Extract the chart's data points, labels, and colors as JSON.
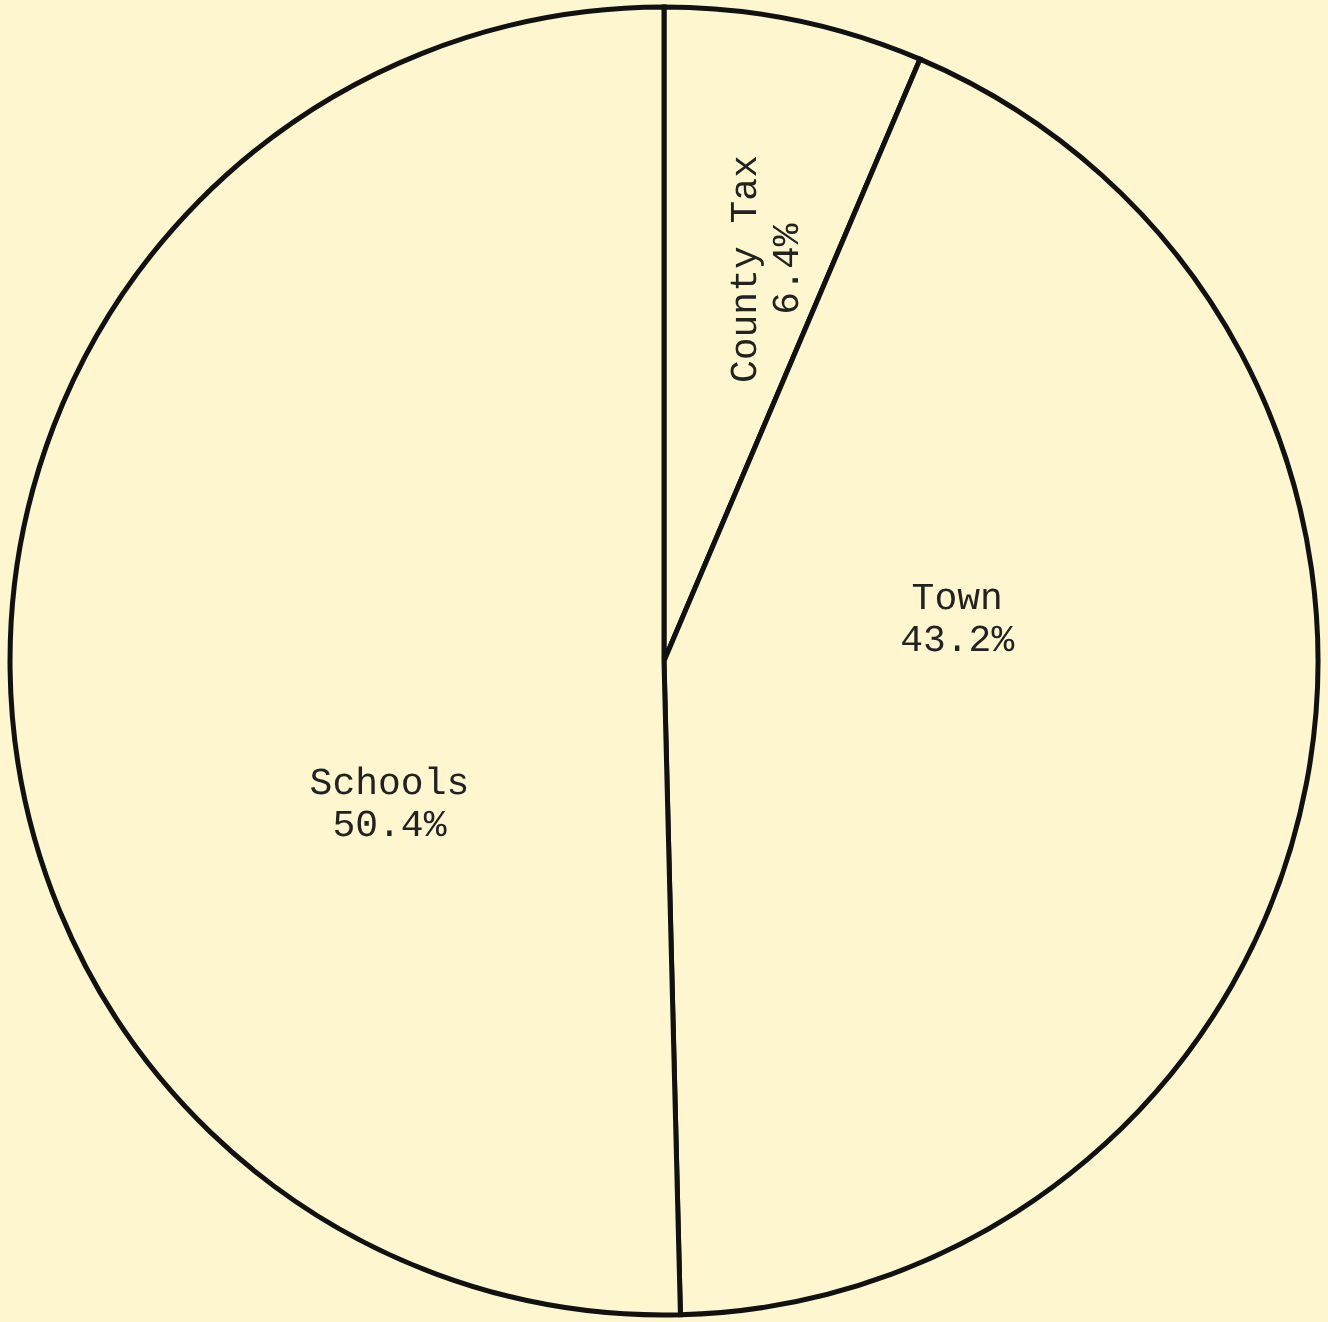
{
  "chart_data": {
    "type": "pie",
    "categories": [
      "County Tax",
      "Town",
      "Schools"
    ],
    "values": [
      6.4,
      43.2,
      50.4
    ],
    "value_labels": [
      "6.4%",
      "43.2%",
      "50.4%"
    ],
    "colors": [
      "#fdf6cf",
      "#fdf6cf",
      "#fdf6cf"
    ]
  }
}
